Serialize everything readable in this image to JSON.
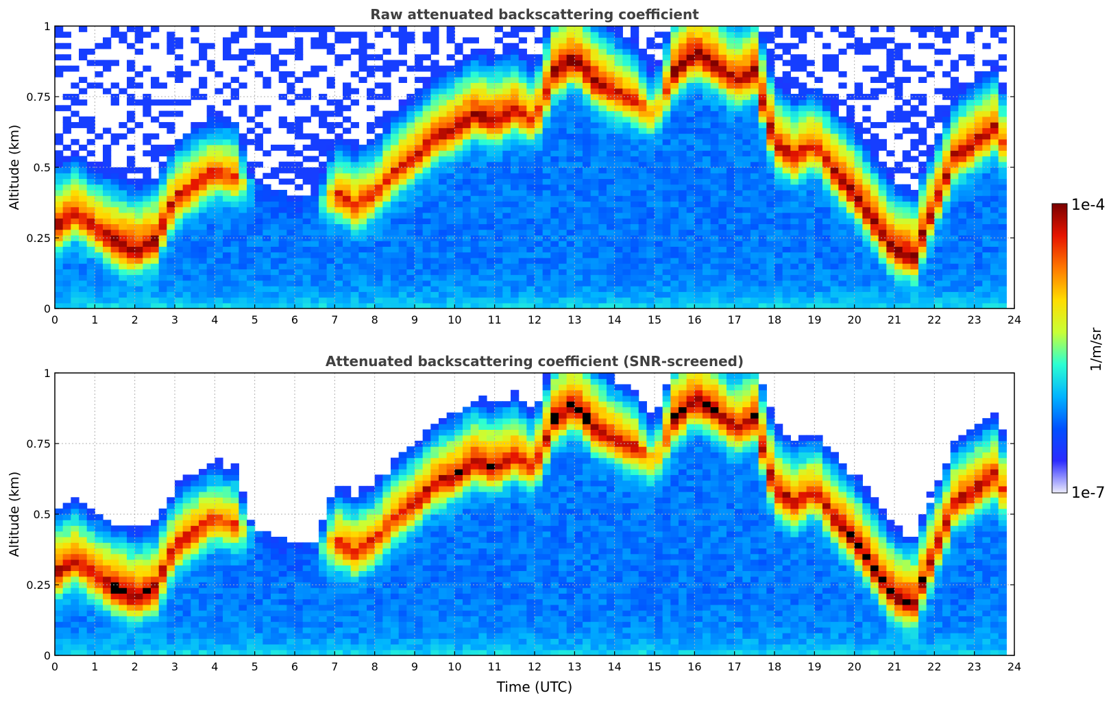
{
  "chart_data": [
    {
      "type": "heatmap",
      "title": "Raw attenuated backscattering coefficient",
      "xlabel": "",
      "ylabel": "Altitude (km)",
      "xlim": [
        0,
        24
      ],
      "ylim": [
        0,
        1
      ],
      "xticks": [
        "0",
        "1",
        "2",
        "3",
        "4",
        "5",
        "6",
        "7",
        "8",
        "9",
        "10",
        "11",
        "12",
        "13",
        "14",
        "15",
        "16",
        "17",
        "18",
        "19",
        "20",
        "21",
        "22",
        "23",
        "24"
      ],
      "yticks": [
        "0",
        "0.25",
        "0.5",
        "0.75",
        "1"
      ],
      "ytick_values": [
        0,
        0.25,
        0.5,
        0.75,
        1
      ],
      "grid": true,
      "screened": false,
      "time_utc": [
        0,
        0.5,
        1,
        1.5,
        2,
        2.5,
        3,
        3.5,
        4,
        4.5,
        5,
        5.5,
        6,
        6.5,
        7,
        7.5,
        8,
        8.5,
        9,
        9.5,
        10,
        10.5,
        11,
        11.5,
        12,
        12.5,
        13,
        13.5,
        14,
        14.5,
        15,
        15.5,
        16,
        16.5,
        17,
        17.5,
        18,
        18.5,
        19,
        19.5,
        20,
        20.5,
        21,
        21.5,
        22,
        22.5,
        23,
        23.5,
        23.8
      ],
      "layer_altitude_km": [
        0.3,
        0.35,
        0.3,
        0.25,
        0.22,
        0.25,
        0.4,
        0.45,
        0.5,
        0.48,
        0.45,
        0.42,
        0.4,
        0.4,
        0.42,
        0.38,
        0.42,
        0.5,
        0.55,
        0.62,
        0.65,
        0.7,
        0.68,
        0.72,
        0.68,
        0.85,
        0.9,
        0.82,
        0.78,
        0.75,
        0.7,
        0.85,
        0.92,
        0.88,
        0.82,
        0.85,
        0.6,
        0.55,
        0.6,
        0.5,
        0.42,
        0.32,
        0.22,
        0.2,
        0.38,
        0.55,
        0.6,
        0.65,
        0.58
      ],
      "backscatter_log10_at_layer": [
        -4.1,
        -4.2,
        -4.2,
        -4,
        -4,
        -4.1,
        -4.3,
        -4.3,
        -4.4,
        -4.4,
        -6.3,
        -6.4,
        -6.4,
        -6.3,
        -4.4,
        -4.3,
        -4.4,
        -4.3,
        -4.2,
        -4.2,
        -4.1,
        -4.1,
        -4.1,
        -4.2,
        -4.4,
        -4,
        -4,
        -4,
        -4.2,
        -4.3,
        -5,
        -4,
        -4,
        -4,
        -4.2,
        -4,
        -4.1,
        -4.2,
        -4.3,
        -4.1,
        -4,
        -4,
        -4,
        -4,
        -4.1,
        -4.2,
        -4.1,
        -4.2,
        -4.5
      ],
      "note": ""
    },
    {
      "type": "heatmap",
      "title": "Attenuated backscattering coefficient (SNR-screened)",
      "xlabel": "Time (UTC)",
      "ylabel": "Altitude (km)",
      "xlim": [
        0,
        24
      ],
      "ylim": [
        0,
        1
      ],
      "xticks": [
        "0",
        "1",
        "2",
        "3",
        "4",
        "5",
        "6",
        "7",
        "8",
        "9",
        "10",
        "11",
        "12",
        "13",
        "14",
        "15",
        "16",
        "17",
        "18",
        "19",
        "20",
        "21",
        "22",
        "23",
        "24"
      ],
      "yticks": [
        "0",
        "0.25",
        "0.5",
        "0.75",
        "1"
      ],
      "ytick_values": [
        0,
        0.25,
        0.5,
        0.75,
        1
      ],
      "grid": true,
      "screened": true,
      "time_utc": [
        0,
        0.5,
        1,
        1.5,
        2,
        2.5,
        3,
        3.5,
        4,
        4.5,
        5,
        5.5,
        6,
        6.5,
        7,
        7.5,
        8,
        8.5,
        9,
        9.5,
        10,
        10.5,
        11,
        11.5,
        12,
        12.5,
        13,
        13.5,
        14,
        14.5,
        15,
        15.5,
        16,
        16.5,
        17,
        17.5,
        18,
        18.5,
        19,
        19.5,
        20,
        20.5,
        21,
        21.5,
        22,
        22.5,
        23,
        23.5,
        23.8
      ],
      "layer_altitude_km": [
        0.3,
        0.35,
        0.3,
        0.25,
        0.22,
        0.25,
        0.4,
        0.45,
        0.5,
        0.48,
        0.45,
        0.42,
        0.4,
        0.4,
        0.42,
        0.38,
        0.42,
        0.5,
        0.55,
        0.62,
        0.65,
        0.7,
        0.68,
        0.72,
        0.68,
        0.85,
        0.9,
        0.82,
        0.78,
        0.75,
        0.7,
        0.85,
        0.92,
        0.88,
        0.82,
        0.85,
        0.6,
        0.55,
        0.6,
        0.5,
        0.42,
        0.32,
        0.22,
        0.2,
        0.38,
        0.55,
        0.6,
        0.65,
        0.58
      ],
      "backscatter_log10_at_layer": [
        -4.1,
        -4.2,
        -4.2,
        -4,
        -4,
        -4.1,
        -4.3,
        -4.3,
        -4.4,
        -4.4,
        -6.3,
        -6.4,
        -6.4,
        -6.3,
        -4.4,
        -4.3,
        -4.4,
        -4.3,
        -4.2,
        -4.2,
        -4.1,
        -4.1,
        -4.1,
        -4.2,
        -4.4,
        -4,
        -4,
        -4,
        -4.2,
        -4.3,
        -5,
        -4,
        -4,
        -4,
        -4.2,
        -4,
        -4.1,
        -4.2,
        -4.3,
        -4.1,
        -4,
        -4,
        -4,
        -4,
        -4.1,
        -4.2,
        -4.1,
        -4.2,
        -4.5
      ],
      "note": ""
    }
  ],
  "colorbar": {
    "label": "1/m/sr",
    "max_label": "1e-4",
    "min_label": "1e-7",
    "colormap": "jet",
    "stops": [
      "#ececfc",
      "#2b2bff",
      "#0050ff",
      "#00b4ff",
      "#2cffd2",
      "#c8ff36",
      "#ffdc00",
      "#ff7800",
      "#e61400",
      "#7a0000"
    ],
    "masked_color": "#000000",
    "fill_value_color": "#ffffff",
    "max_log10": -4,
    "min_log10": -7
  }
}
